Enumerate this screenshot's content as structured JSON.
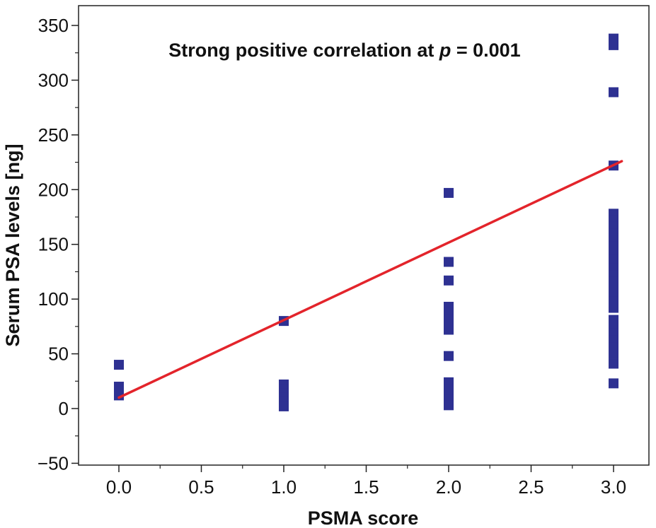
{
  "chart_data": {
    "type": "scatter",
    "title": "",
    "xlabel": "PSMA score",
    "ylabel": "Serum PSA levels [ng]",
    "annotation_prefix": "Strong positive correlation at ",
    "annotation_p": "p",
    "annotation_suffix": " = 0.001",
    "xlim": [
      -0.25,
      3.2
    ],
    "ylim": [
      -50,
      360
    ],
    "xticks": [
      0.0,
      0.5,
      1.0,
      1.5,
      2.0,
      2.5,
      3.0
    ],
    "xtick_labels": [
      "0.0",
      "0.5",
      "1.0",
      "1.5",
      "2.0",
      "2.5",
      "3.0"
    ],
    "yticks": [
      -50,
      0,
      50,
      100,
      150,
      200,
      250,
      300,
      350
    ],
    "ytick_labels": [
      "−50",
      "0",
      "50",
      "100",
      "150",
      "200",
      "250",
      "300",
      "350"
    ],
    "grid": false,
    "points": [
      {
        "x": 0,
        "y": 40
      },
      {
        "x": 0,
        "y": 20
      },
      {
        "x": 0,
        "y": 15
      },
      {
        "x": 0,
        "y": 12
      },
      {
        "x": 1,
        "y": 80
      },
      {
        "x": 1,
        "y": 22
      },
      {
        "x": 1,
        "y": 18
      },
      {
        "x": 1,
        "y": 14
      },
      {
        "x": 1,
        "y": 10
      },
      {
        "x": 1,
        "y": 6
      },
      {
        "x": 1,
        "y": 2
      },
      {
        "x": 2,
        "y": 197
      },
      {
        "x": 2,
        "y": 134
      },
      {
        "x": 2,
        "y": 117
      },
      {
        "x": 2,
        "y": 93
      },
      {
        "x": 2,
        "y": 88
      },
      {
        "x": 2,
        "y": 82
      },
      {
        "x": 2,
        "y": 77
      },
      {
        "x": 2,
        "y": 72
      },
      {
        "x": 2,
        "y": 48
      },
      {
        "x": 2,
        "y": 24
      },
      {
        "x": 2,
        "y": 18
      },
      {
        "x": 2,
        "y": 13
      },
      {
        "x": 2,
        "y": 8
      },
      {
        "x": 2,
        "y": 3
      },
      {
        "x": 3,
        "y": 338
      },
      {
        "x": 3,
        "y": 332
      },
      {
        "x": 3,
        "y": 289
      },
      {
        "x": 3,
        "y": 222
      },
      {
        "x": 3,
        "y": 178
      },
      {
        "x": 3,
        "y": 172
      },
      {
        "x": 3,
        "y": 166
      },
      {
        "x": 3,
        "y": 160
      },
      {
        "x": 3,
        "y": 154
      },
      {
        "x": 3,
        "y": 148
      },
      {
        "x": 3,
        "y": 142
      },
      {
        "x": 3,
        "y": 136
      },
      {
        "x": 3,
        "y": 128
      },
      {
        "x": 3,
        "y": 122
      },
      {
        "x": 3,
        "y": 116
      },
      {
        "x": 3,
        "y": 110
      },
      {
        "x": 3,
        "y": 104
      },
      {
        "x": 3,
        "y": 98
      },
      {
        "x": 3,
        "y": 92
      },
      {
        "x": 3,
        "y": 81
      },
      {
        "x": 3,
        "y": 75
      },
      {
        "x": 3,
        "y": 69
      },
      {
        "x": 3,
        "y": 62
      },
      {
        "x": 3,
        "y": 56
      },
      {
        "x": 3,
        "y": 50
      },
      {
        "x": 3,
        "y": 41
      },
      {
        "x": 3,
        "y": 23
      }
    ],
    "marker_color": "#2e3192",
    "fit_line": {
      "x": [
        0,
        3.05
      ],
      "y": [
        10,
        226
      ],
      "color": "#e3242b"
    }
  }
}
